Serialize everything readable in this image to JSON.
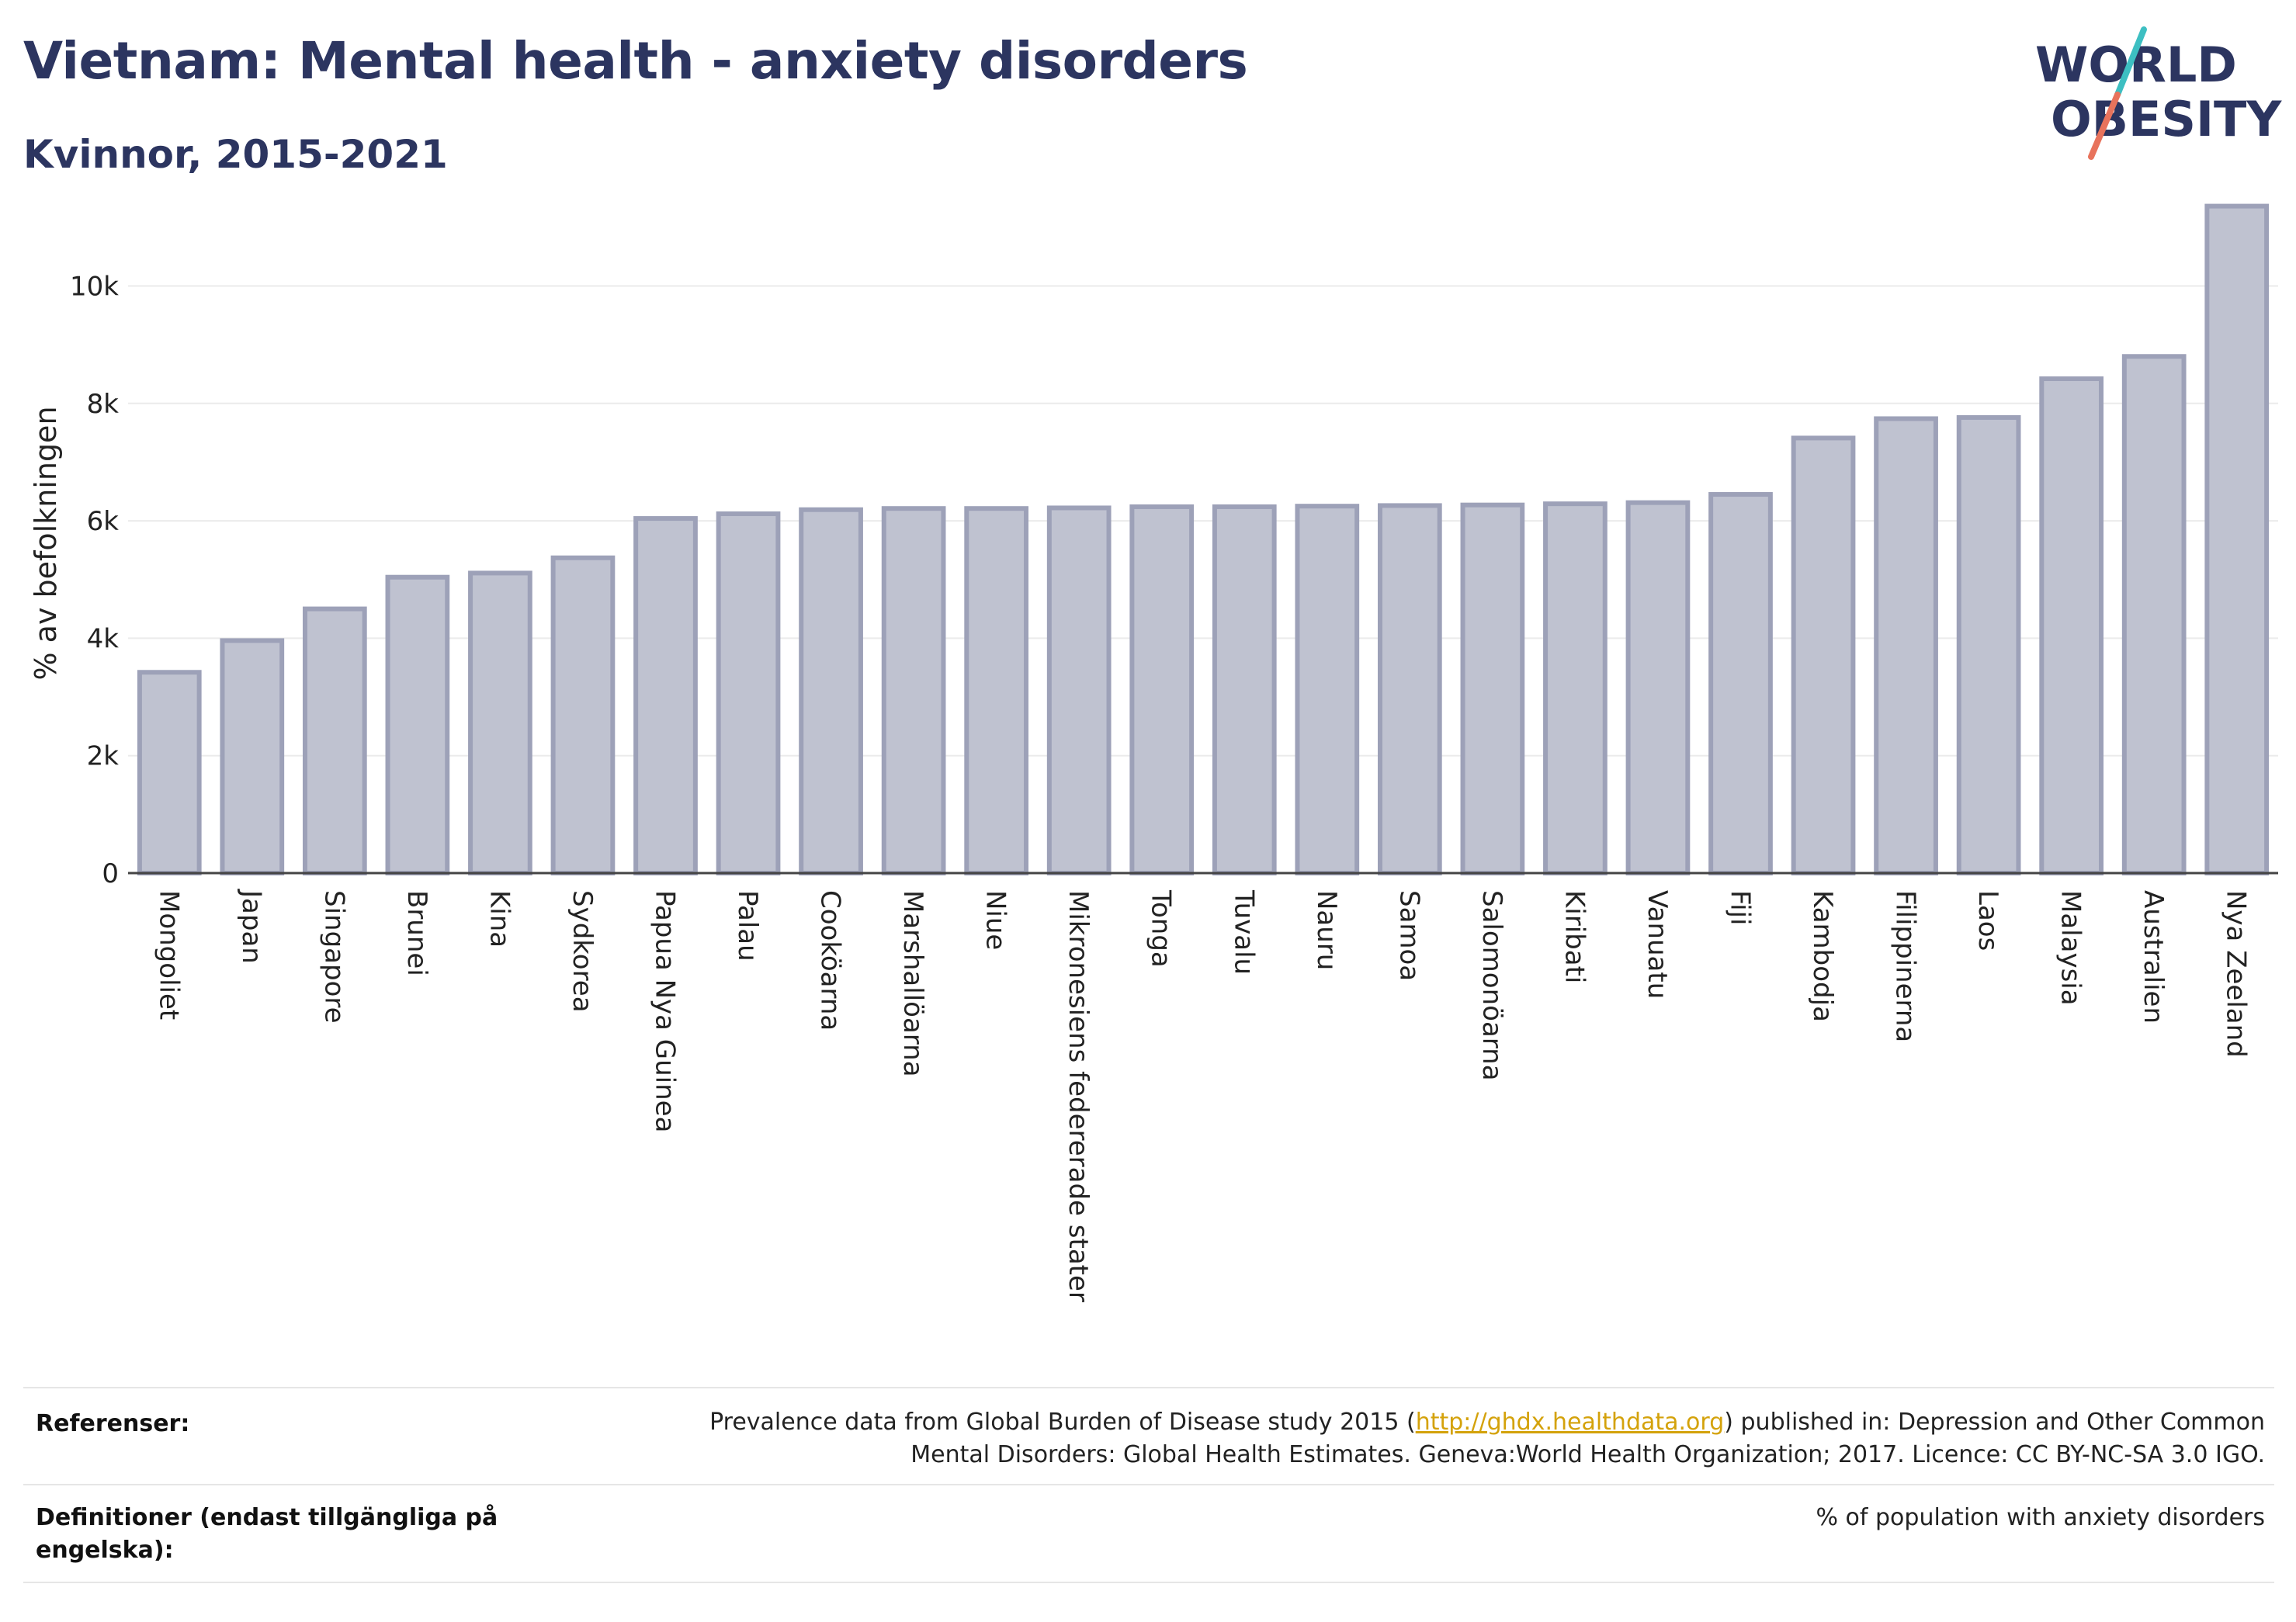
{
  "header": {
    "title": "Vietnam: Mental health - anxiety disorders",
    "subtitle": "Kvinnor, 2015-2021"
  },
  "logo": {
    "line1": "WORLD",
    "line2": "OBESITY",
    "colors": {
      "text": "#2c3560",
      "slash_teal": "#3dbfc2",
      "slash_coral": "#e8735c"
    }
  },
  "chart_data": {
    "type": "bar",
    "categories": [
      "Mongoliet",
      "Japan",
      "Singapore",
      "Brunei",
      "Kina",
      "Sydkorea",
      "Papua Nya Guinea",
      "Palau",
      "Cookö­arna",
      "Marshallöarna",
      "Niue",
      "Mikronesiens federerade stater",
      "Tonga",
      "Tuvalu",
      "Nauru",
      "Samoa",
      "Salomonöarna",
      "Kiribati",
      "Vanuatu",
      "Fiji",
      "Kambodja",
      "Filippinerna",
      "Laos",
      "Malaysia",
      "Australien",
      "Nya Zeeland"
    ],
    "values": [
      3420,
      3960,
      4500,
      5040,
      5110,
      5370,
      6040,
      6120,
      6190,
      6210,
      6210,
      6220,
      6240,
      6240,
      6250,
      6260,
      6270,
      6290,
      6310,
      6450,
      7410,
      7740,
      7760,
      8420,
      8800,
      11360
    ],
    "title": "",
    "xlabel": "",
    "ylabel": "% av befolkningen",
    "ylim": [
      0,
      11500
    ],
    "yticks": [
      0,
      2000,
      4000,
      6000,
      8000,
      10000
    ],
    "ytick_labels": [
      "0",
      "2k",
      "4k",
      "6k",
      "8k",
      "10k"
    ],
    "grid": true,
    "legend": "none",
    "colors": {
      "bar_fill": "#bfc2d0",
      "bar_stroke": "#9da1b8",
      "grid": "#ebebeb",
      "axis": "#444444"
    }
  },
  "footer": {
    "references_label": "Referenser:",
    "references_text_before": "Prevalence data from Global Burden of Disease study 2015 (",
    "references_link": "http://ghdx.healthdata.org",
    "references_text_after": ") published in: Depression and Other Common Mental Disorders: Global Health Estimates. Geneva:World Health Organization; 2017. Licence: CC BY-NC-SA 3.0 IGO.",
    "definitions_label": "Definitioner (endast tillgängliga på engelska):",
    "definitions_text": "% of population with anxiety disorders"
  }
}
